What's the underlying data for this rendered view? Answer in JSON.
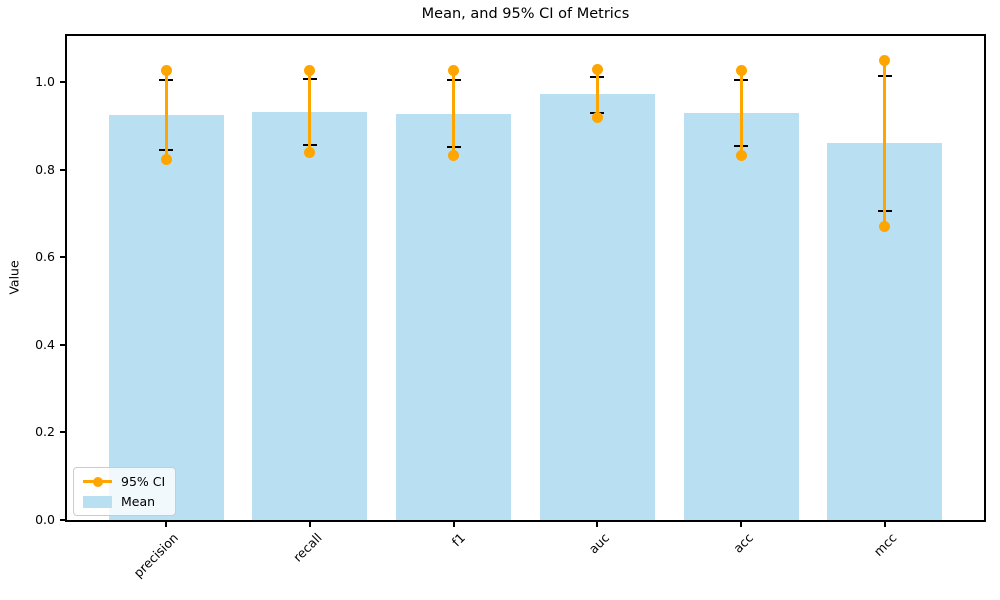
{
  "chart_data": {
    "type": "bar",
    "title": "Mean, and 95% CI of Metrics",
    "xlabel": "",
    "ylabel": "Value",
    "categories": [
      "precision",
      "recall",
      "f1",
      "auc",
      "acc",
      "mcc"
    ],
    "series": [
      {
        "name": "Mean",
        "type": "bar",
        "color": "#b8dff2",
        "values": [
          0.924,
          0.932,
          0.927,
          0.972,
          0.929,
          0.86
        ]
      },
      {
        "name": "95% CI",
        "type": "ci_line_with_markers",
        "color": "#ffa500",
        "low": [
          0.822,
          0.838,
          0.833,
          0.918,
          0.833,
          0.67
        ],
        "high": [
          1.027,
          1.027,
          1.027,
          1.028,
          1.027,
          1.049
        ]
      }
    ],
    "error_bars": {
      "color": "#000000",
      "capsize": true,
      "low": [
        0.845,
        0.857,
        0.851,
        0.93,
        0.854,
        0.706
      ],
      "high": [
        1.004,
        1.006,
        1.005,
        1.012,
        1.005,
        1.014
      ]
    },
    "ylim": [
      0,
      1.105
    ],
    "yticks": [
      0.0,
      0.2,
      0.4,
      0.6,
      0.8,
      1.0
    ],
    "ytick_labels": [
      "0.0",
      "0.2",
      "0.4",
      "0.6",
      "0.8",
      "1.0"
    ],
    "xtick_rotation": 45,
    "grid": false,
    "legend": {
      "position": "lower left",
      "entries": [
        {
          "label": "95% CI",
          "sample": "line-marker",
          "color": "#ffa500"
        },
        {
          "label": "Mean",
          "sample": "patch",
          "color": "#b8dff2"
        }
      ]
    }
  }
}
